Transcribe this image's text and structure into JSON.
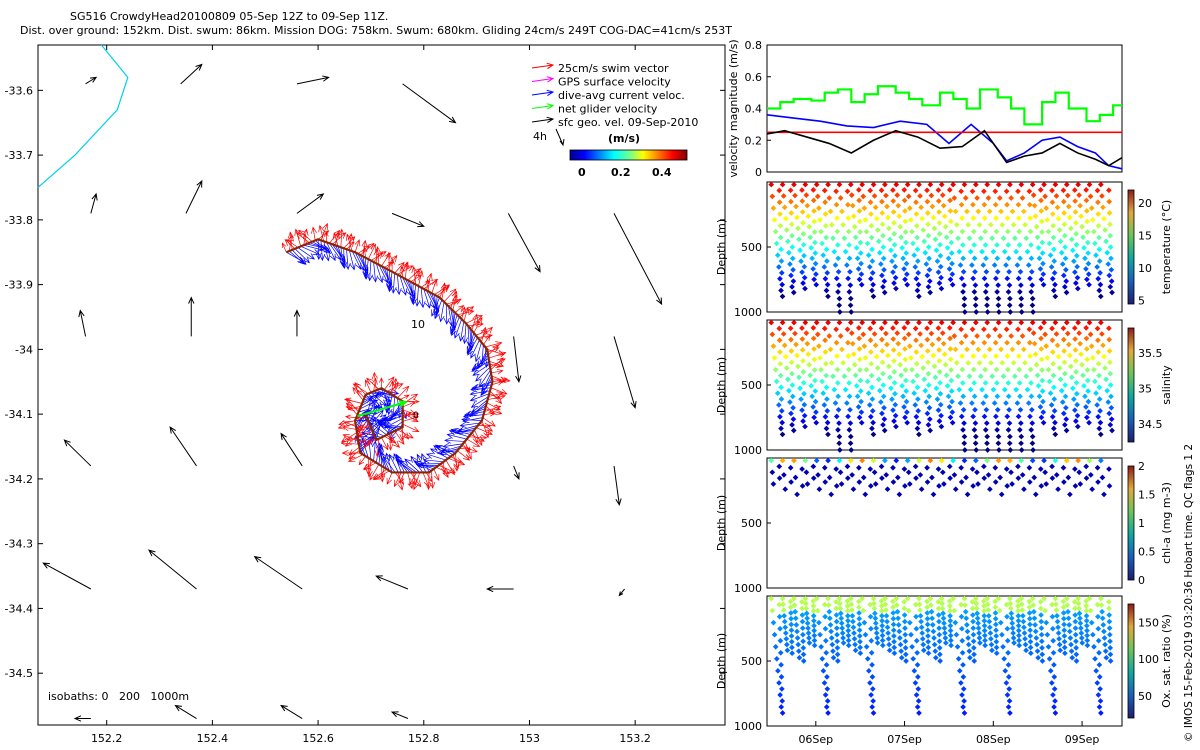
{
  "header": {
    "title": "SG516 CrowdyHead20100809 05-Sep 12Z to 09-Sep 11Z.",
    "subtitle": "Dist. over ground: 152km. Dist. swum: 86km. Mission DOG: 758km. Swum: 680km. Gliding 24cm/s 249T COG-DAC=41cm/s 253T"
  },
  "credit": "© IMOS 15-Feb-2019 03:20:36 Hobart time. QC flags 1  2",
  "colors": {
    "swim": "#ff0000",
    "gps": "#ff00ff",
    "dac": "#0000ff",
    "net": "#00ff00",
    "geo": "#000000",
    "coast": "#00d0e8",
    "track": "#8b2500"
  },
  "chart_data": [
    {
      "id": "map",
      "type": "quiver-map",
      "xticks": [
        "152.2",
        "152.4",
        "152.6",
        "152.8",
        "153",
        "153.2"
      ],
      "yticks": [
        "-33.6",
        "-33.7",
        "-33.8",
        "-33.9",
        "-34",
        "-34.1",
        "-34.2",
        "-34.3",
        "-34.4",
        "-34.5"
      ],
      "xlim": [
        152.07,
        153.37
      ],
      "ylim": [
        -34.58,
        -33.53
      ],
      "legend": {
        "items": [
          {
            "label": "25cm/s swim vector",
            "color": "#ff0000"
          },
          {
            "label": "GPS surface velocity",
            "color": "#ff00ff"
          },
          {
            "label": "dive-avg current veloc.",
            "color": "#0000ff"
          },
          {
            "label": "net glider velocity",
            "color": "#00ff00"
          },
          {
            "label": "sfc geo. vel. 09-Sep-2010",
            "color": "#000000"
          }
        ],
        "scale_label": "4h",
        "colorbar_title": "(m/s)",
        "colorbar_ticks": [
          "0",
          "0.2",
          "0.4"
        ]
      },
      "track_labels": [
        "10",
        "0"
      ],
      "isobath_note": "isobaths: 0   200   1000m",
      "geo_vectors": [
        [
          152.16,
          -33.59,
          0.0,
          0.02,
          0.01
        ],
        [
          152.34,
          -33.59,
          0.0,
          0.04,
          0.03
        ],
        [
          152.56,
          -33.59,
          0.0,
          0.06,
          0.01
        ],
        [
          152.76,
          -33.59,
          0.0,
          0.1,
          -0.06
        ],
        [
          152.17,
          -33.79,
          0.0,
          0.01,
          0.03
        ],
        [
          152.35,
          -33.79,
          0.0,
          0.03,
          0.05
        ],
        [
          152.56,
          -33.79,
          0.0,
          0.05,
          0.03
        ],
        [
          152.74,
          -33.79,
          0.0,
          0.06,
          -0.02
        ],
        [
          152.96,
          -33.79,
          0.0,
          0.06,
          -0.09
        ],
        [
          153.16,
          -33.79,
          0.0,
          0.09,
          -0.14
        ],
        [
          152.16,
          -33.98,
          0.0,
          -0.01,
          0.04
        ],
        [
          152.36,
          -33.98,
          0.0,
          0.0,
          0.06
        ],
        [
          152.56,
          -33.98,
          0.0,
          0.0,
          0.04
        ],
        [
          152.97,
          -33.98,
          0.0,
          0.01,
          -0.07
        ],
        [
          153.16,
          -33.98,
          0.0,
          0.04,
          -0.11
        ],
        [
          152.17,
          -34.18,
          0.0,
          -0.05,
          0.04
        ],
        [
          152.37,
          -34.18,
          0.0,
          -0.05,
          0.06
        ],
        [
          152.57,
          -34.18,
          0.0,
          -0.04,
          0.05
        ],
        [
          152.97,
          -34.18,
          0.0,
          0.01,
          -0.02
        ],
        [
          153.16,
          -34.18,
          0.0,
          0.01,
          -0.06
        ],
        [
          152.17,
          -34.37,
          0.0,
          -0.09,
          0.04
        ],
        [
          152.37,
          -34.37,
          0.0,
          -0.09,
          0.06
        ],
        [
          152.57,
          -34.37,
          0.0,
          -0.09,
          0.05
        ],
        [
          152.77,
          -34.37,
          0.0,
          -0.06,
          0.02
        ],
        [
          152.97,
          -34.37,
          0.0,
          -0.05,
          0.0
        ],
        [
          153.18,
          -34.37,
          0.0,
          -0.01,
          -0.01
        ],
        [
          152.17,
          -34.57,
          0.0,
          -0.03,
          0.0
        ],
        [
          152.37,
          -34.57,
          0.0,
          -0.04,
          0.02
        ],
        [
          152.57,
          -34.57,
          0.0,
          -0.04,
          0.02
        ],
        [
          152.77,
          -34.57,
          0.0,
          -0.03,
          0.01
        ]
      ],
      "coastline": [
        [
          152.19,
          -33.53
        ],
        [
          152.24,
          -33.58
        ],
        [
          152.22,
          -33.63
        ],
        [
          152.14,
          -33.7
        ],
        [
          152.07,
          -33.75
        ]
      ],
      "track": [
        [
          152.54,
          -33.85
        ],
        [
          152.6,
          -33.83
        ],
        [
          152.67,
          -33.85
        ],
        [
          152.74,
          -33.88
        ],
        [
          152.83,
          -33.92
        ],
        [
          152.88,
          -33.96
        ],
        [
          152.92,
          -34.0
        ],
        [
          152.93,
          -34.05
        ],
        [
          152.91,
          -34.11
        ],
        [
          152.86,
          -34.16
        ],
        [
          152.81,
          -34.19
        ],
        [
          152.74,
          -34.19
        ],
        [
          152.68,
          -34.16
        ],
        [
          152.67,
          -34.11
        ],
        [
          152.69,
          -34.07
        ],
        [
          152.72,
          -34.06
        ],
        [
          152.76,
          -34.08
        ],
        [
          152.76,
          -34.12
        ],
        [
          152.71,
          -34.14
        ],
        [
          152.69,
          -34.1
        ]
      ]
    },
    {
      "id": "velocity",
      "type": "line",
      "ylabel": "velocity magnitude (m/s)",
      "ylim": [
        0,
        0.8
      ],
      "yticks": [
        "0",
        "0.2",
        "0.4",
        "0.6",
        "0.8"
      ],
      "xlim": [
        0,
        4
      ],
      "series": [
        {
          "color": "#00ff00",
          "style": "step",
          "x": [
            0,
            0.15,
            0.3,
            0.5,
            0.65,
            0.8,
            0.95,
            1.1,
            1.25,
            1.45,
            1.6,
            1.75,
            1.95,
            2.1,
            2.25,
            2.4,
            2.6,
            2.75,
            2.9,
            3.1,
            3.25,
            3.4,
            3.6,
            3.75,
            3.9,
            4.0
          ],
          "y": [
            0.4,
            0.44,
            0.46,
            0.45,
            0.5,
            0.52,
            0.44,
            0.49,
            0.54,
            0.5,
            0.46,
            0.42,
            0.5,
            0.46,
            0.4,
            0.52,
            0.47,
            0.4,
            0.3,
            0.44,
            0.5,
            0.4,
            0.32,
            0.36,
            0.42,
            0.42
          ]
        },
        {
          "color": "#0000ff",
          "style": "line",
          "x": [
            0,
            0.3,
            0.6,
            0.9,
            1.2,
            1.5,
            1.8,
            2.05,
            2.3,
            2.55,
            2.7,
            2.9,
            3.1,
            3.3,
            3.5,
            3.7,
            3.85,
            4.0
          ],
          "y": [
            0.36,
            0.34,
            0.32,
            0.29,
            0.28,
            0.32,
            0.3,
            0.18,
            0.3,
            0.18,
            0.07,
            0.12,
            0.2,
            0.22,
            0.16,
            0.12,
            0.04,
            0.02
          ]
        },
        {
          "color": "#ff0000",
          "style": "line",
          "x": [
            0,
            4.0
          ],
          "y": [
            0.25,
            0.25
          ]
        },
        {
          "color": "#000000",
          "style": "line",
          "x": [
            0,
            0.2,
            0.45,
            0.7,
            0.95,
            1.2,
            1.45,
            1.7,
            1.95,
            2.2,
            2.45,
            2.7,
            2.9,
            3.1,
            3.3,
            3.5,
            3.7,
            3.85,
            4.0
          ],
          "y": [
            0.24,
            0.26,
            0.22,
            0.18,
            0.12,
            0.2,
            0.26,
            0.22,
            0.15,
            0.16,
            0.26,
            0.06,
            0.1,
            0.12,
            0.18,
            0.12,
            0.08,
            0.04,
            0.09
          ]
        }
      ]
    },
    {
      "id": "temperature",
      "type": "scatter",
      "ylabel": "Depth (m)",
      "colorbar_label": "temperature (°C)",
      "colorbar_ticks": [
        "5",
        "10",
        "15",
        "20"
      ],
      "clim": [
        4.5,
        22
      ],
      "colormap": "jet",
      "ylim": [
        1000,
        0
      ],
      "yticks": [
        "500",
        "1000"
      ],
      "profile": "full"
    },
    {
      "id": "salinity",
      "type": "scatter",
      "ylabel": "Depth (m)",
      "colorbar_label": "salinity",
      "colorbar_ticks": [
        "34.5",
        "35",
        "35.5"
      ],
      "clim": [
        34.25,
        35.85
      ],
      "colormap": "jet",
      "ylim": [
        1000,
        0
      ],
      "yticks": [
        "500",
        "1000"
      ],
      "profile": "full"
    },
    {
      "id": "chla",
      "type": "scatter",
      "ylabel": "Depth (m)",
      "colorbar_label": "chl-a (mg m-3)",
      "colorbar_ticks": [
        "0",
        "0.5",
        "1",
        "1.5",
        "2"
      ],
      "clim": [
        0,
        2
      ],
      "colormap": "jet",
      "ylim": [
        1000,
        0
      ],
      "yticks": [
        "500",
        "1000"
      ],
      "profile": "shallow"
    },
    {
      "id": "oxygen",
      "type": "scatter",
      "ylabel": "Depth (m)",
      "colorbar_label": "Ox. sat. ratio (%)",
      "colorbar_ticks": [
        "50",
        "100",
        "150"
      ],
      "clim": [
        20,
        175
      ],
      "colormap": "jet",
      "ylim": [
        1000,
        0
      ],
      "yticks": [
        "500",
        "1000"
      ],
      "xticks": [
        "06Sep",
        "07Sep",
        "08Sep",
        "09Sep"
      ],
      "profile": "oxygen"
    }
  ]
}
